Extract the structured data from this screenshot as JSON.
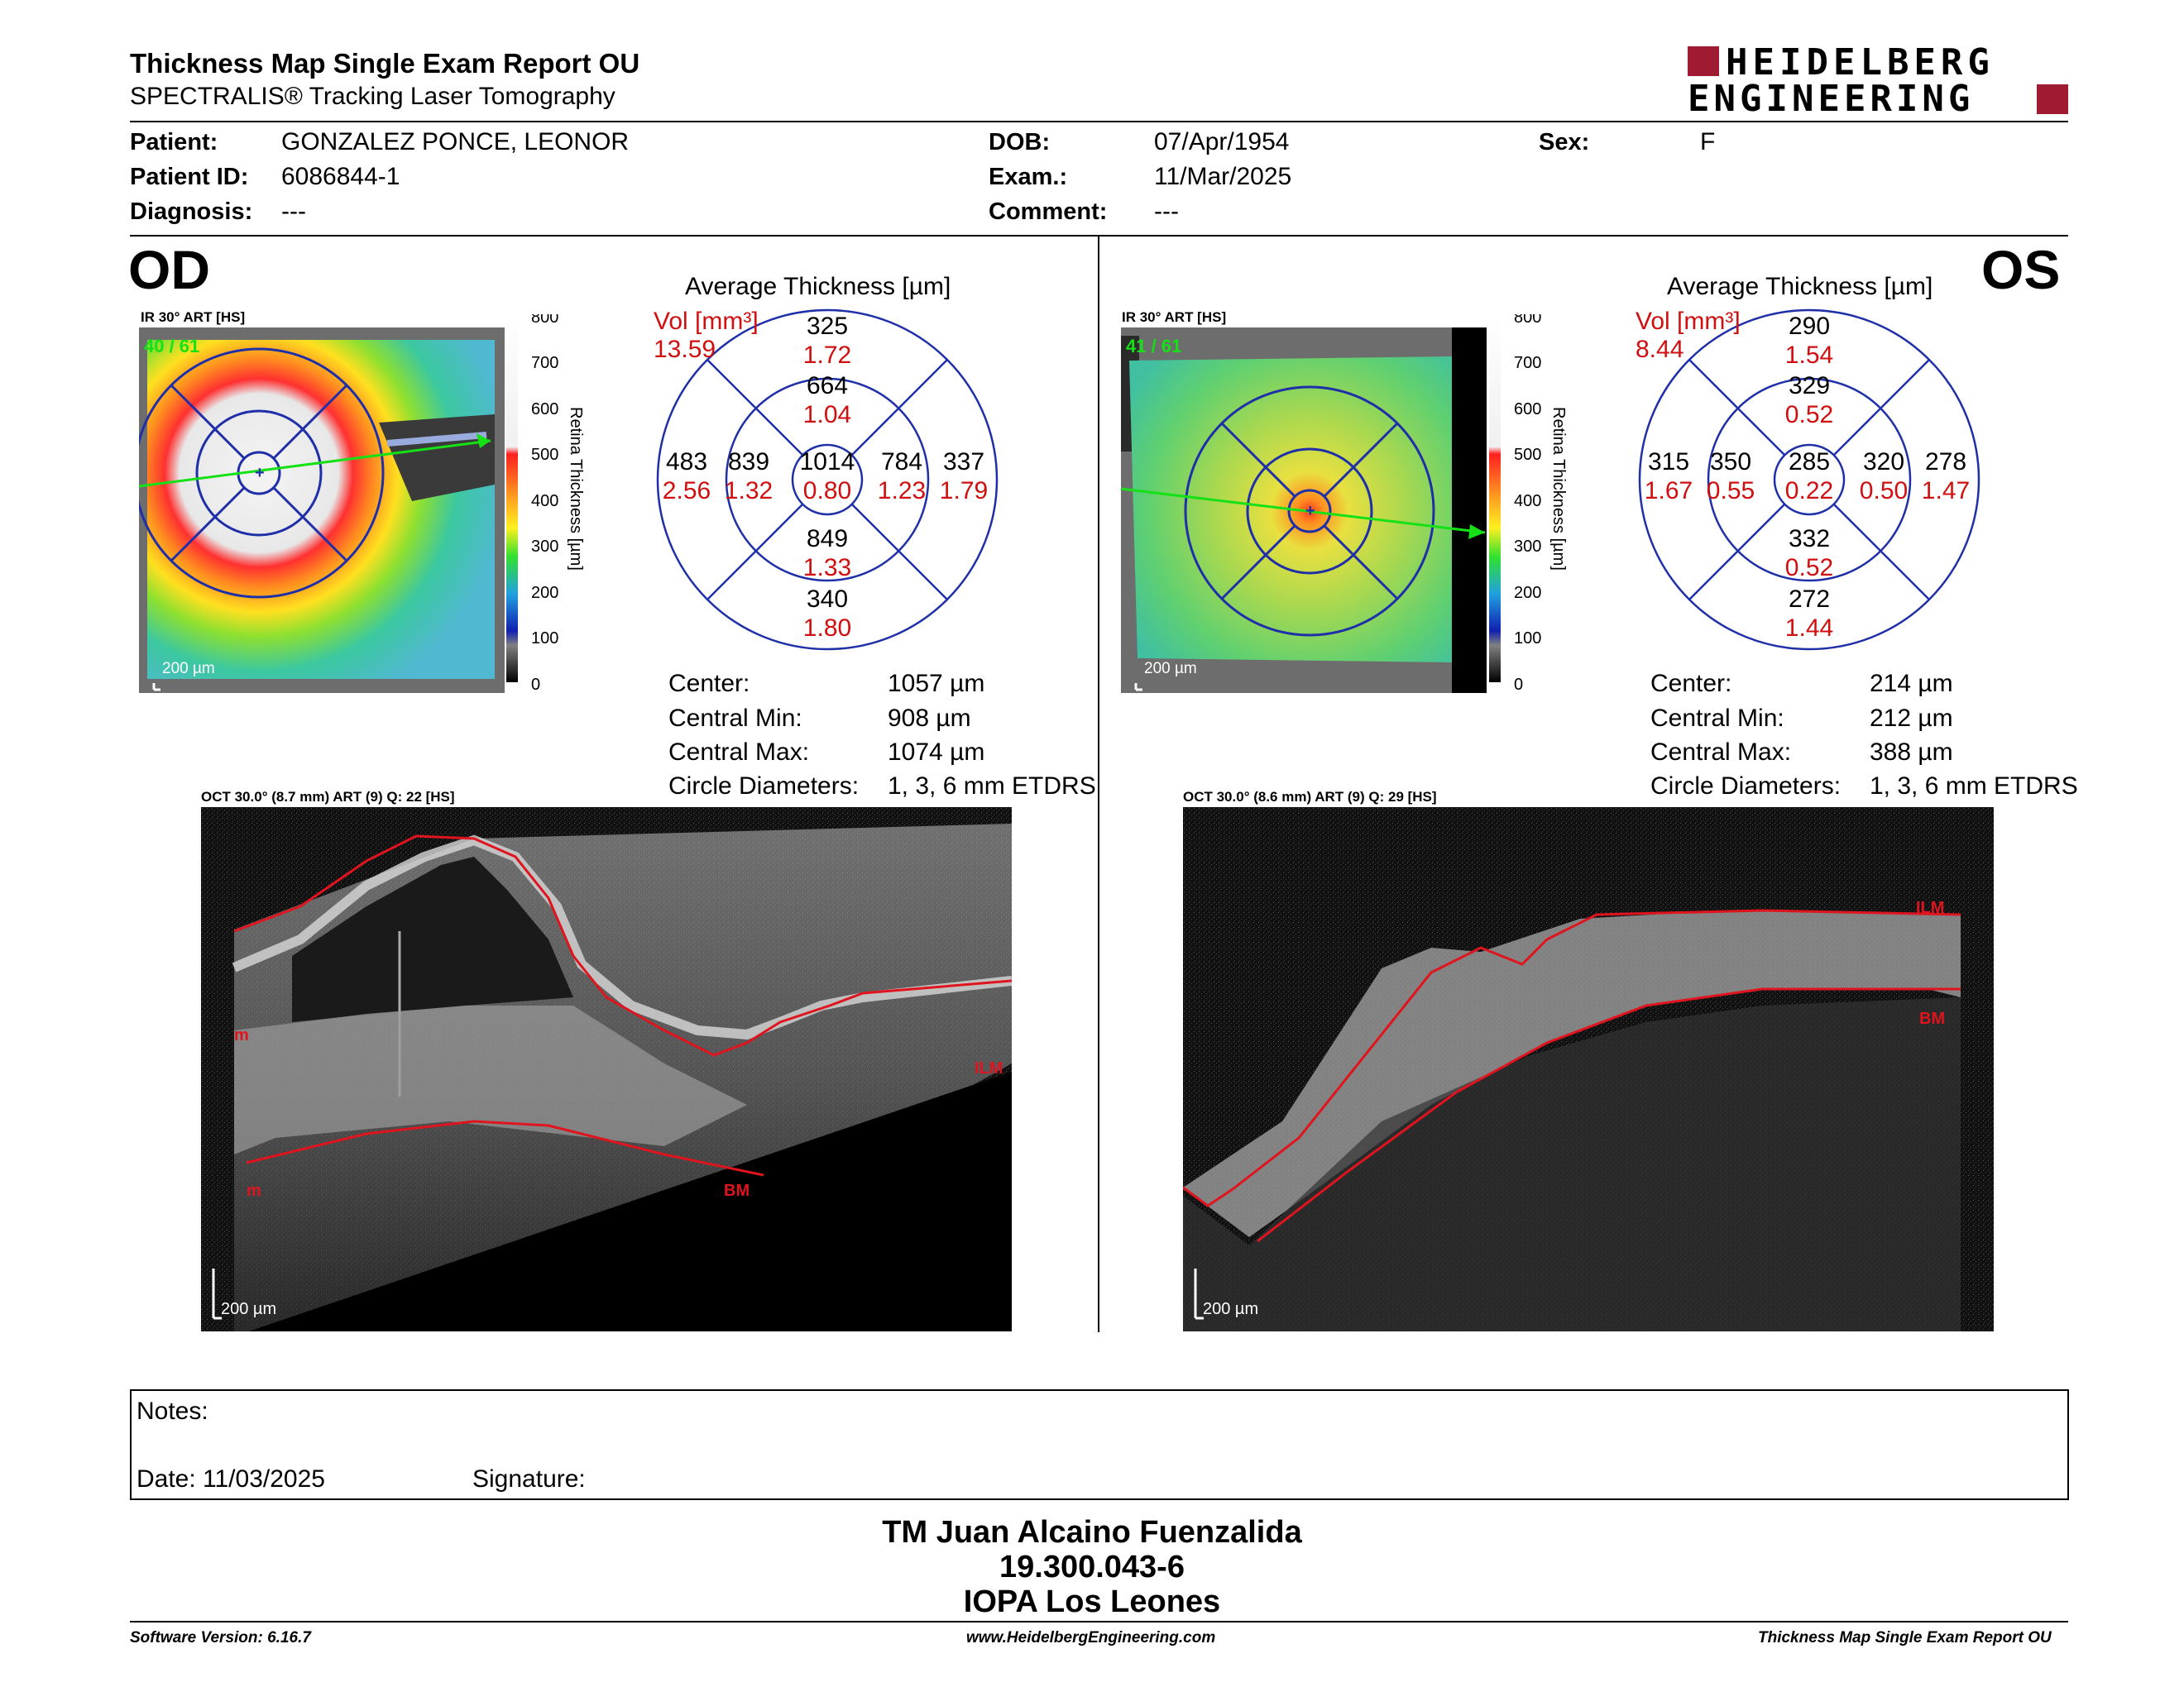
{
  "report": {
    "title": "Thickness Map Single Exam Report OU",
    "subtitle": "SPECTRALIS® Tracking Laser Tomography",
    "logo_top": "HEIDELBERG",
    "logo_bottom": "ENGINEERING"
  },
  "patient": {
    "patient_label": "Patient:",
    "patient_value": "GONZALEZ PONCE, LEONOR",
    "id_label": "Patient ID:",
    "id_value": "6086844-1",
    "diagnosis_label": "Diagnosis:",
    "diagnosis_value": "---",
    "dob_label": "DOB:",
    "dob_value": "07/Apr/1954",
    "exam_label": "Exam.:",
    "exam_value": "11/Mar/2025",
    "comment_label": "Comment:",
    "comment_value": "---",
    "sex_label": "Sex:",
    "sex_value": "F"
  },
  "od": {
    "eye": "OD",
    "ir_label": "IR 30° ART [HS]",
    "frames": "40 / 61",
    "scale_bar": "200 µm",
    "avg_title": "Average Thickness [µm]",
    "vol_label": "Vol [mm³]",
    "vol_total": "13.59",
    "sectors": {
      "outer_sup": "325",
      "outer_sup_vol": "1.72",
      "inner_sup": "664",
      "inner_sup_vol": "1.04",
      "outer_temp": "483",
      "outer_temp_vol": "2.56",
      "inner_temp": "839",
      "inner_temp_vol": "1.32",
      "center": "1014",
      "center_vol": "0.80",
      "inner_nas": "784",
      "inner_nas_vol": "1.23",
      "outer_nas": "337",
      "outer_nas_vol": "1.79",
      "inner_inf": "849",
      "inner_inf_vol": "1.33",
      "outer_inf": "340",
      "outer_inf_vol": "1.80"
    },
    "center_label": "Center:",
    "center_value": "1057 µm",
    "cmin_label": "Central Min:",
    "cmin_value": "908 µm",
    "cmax_label": "Central Max:",
    "cmax_value": "1074 µm",
    "circ_label": "Circle Diameters:",
    "circ_value": "1, 3, 6 mm ETDRS",
    "oct_label": "OCT 30.0° (8.7 mm) ART (9) Q: 22 [HS]",
    "oct_scale": "200 µm",
    "ilm": "ILM",
    "bm": "BM",
    "m1": "m",
    "m2": "m"
  },
  "os": {
    "eye": "OS",
    "ir_label": "IR 30° ART [HS]",
    "frames": "41 / 61",
    "scale_bar": "200 µm",
    "avg_title": "Average Thickness [µm]",
    "vol_label": "Vol [mm³]",
    "vol_total": "8.44",
    "sectors": {
      "outer_sup": "290",
      "outer_sup_vol": "1.54",
      "inner_sup": "329",
      "inner_sup_vol": "0.52",
      "outer_temp": "315",
      "outer_temp_vol": "1.67",
      "inner_temp": "350",
      "inner_temp_vol": "0.55",
      "center": "285",
      "center_vol": "0.22",
      "inner_nas": "320",
      "inner_nas_vol": "0.50",
      "outer_nas": "278",
      "outer_nas_vol": "1.47",
      "inner_inf": "332",
      "inner_inf_vol": "0.52",
      "outer_inf": "272",
      "outer_inf_vol": "1.44"
    },
    "center_label": "Center:",
    "center_value": "214 µm",
    "cmin_label": "Central Min:",
    "cmin_value": "212 µm",
    "cmax_label": "Central Max:",
    "cmax_value": "388 µm",
    "circ_label": "Circle Diameters:",
    "circ_value": "1, 3, 6 mm ETDRS",
    "oct_label": "OCT 30.0° (8.6 mm) ART (9) Q: 29 [HS]",
    "oct_scale": "200 µm",
    "ilm": "ILM",
    "bm": "BM"
  },
  "colorbar": {
    "ticks": [
      "800",
      "700",
      "600",
      "500",
      "400",
      "300",
      "200",
      "100",
      "0"
    ],
    "label": "Retina Thickness [µm]"
  },
  "notes": {
    "notes_label": "Notes:",
    "date_label": "Date: 11/03/2025",
    "signature_label": "Signature:"
  },
  "signer": {
    "name": "TM Juan Alcaino Fuenzalida",
    "rut": "19.300.043-6",
    "clinic": "IOPA Los Leones"
  },
  "footer": {
    "software": "Software Version: 6.16.7",
    "website": "www.HeidelbergEngineering.com",
    "report_name": "Thickness Map Single Exam Report OU"
  },
  "colors": {
    "brand_red": "#9e1b32",
    "grid_blue": "#1f2fa8",
    "vol_red": "#d01010",
    "line_green": "#16e016",
    "seg_red": "#e0141e"
  }
}
